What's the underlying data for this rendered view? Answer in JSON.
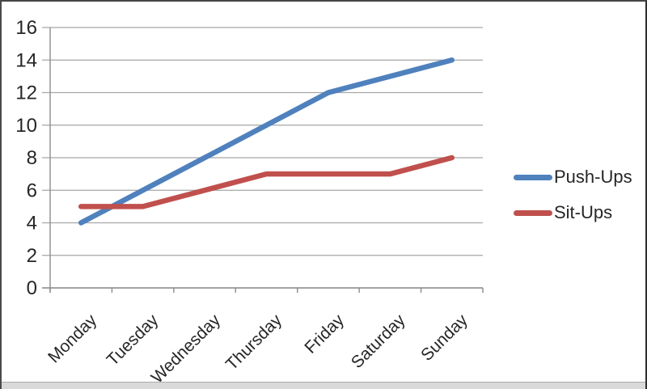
{
  "chart_data": {
    "type": "line",
    "title": "",
    "xlabel": "",
    "ylabel": "",
    "categories": [
      "Monday",
      "Tuesday",
      "Wednesday",
      "Thursday",
      "Friday",
      "Saturday",
      "Sunday"
    ],
    "series": [
      {
        "name": "Push-Ups",
        "color": "#4F81BD",
        "values": [
          4,
          6,
          8,
          10,
          12,
          13,
          14
        ]
      },
      {
        "name": "Sit-Ups",
        "color": "#C0504D",
        "values": [
          5,
          5,
          6,
          7,
          7,
          7,
          8
        ]
      }
    ],
    "ylim": [
      0,
      16
    ],
    "ytick_step": 2,
    "ytick_labels": [
      "0",
      "2",
      "4",
      "6",
      "8",
      "10",
      "12",
      "14",
      "16"
    ],
    "grid": true,
    "legend_position": "right",
    "colors": {
      "gridline": "#A6A6A6",
      "axis": "#8C8C8C",
      "label": "#262626",
      "background": "#FFFFFF",
      "bottom_strip": "#D9D9D9"
    }
  }
}
